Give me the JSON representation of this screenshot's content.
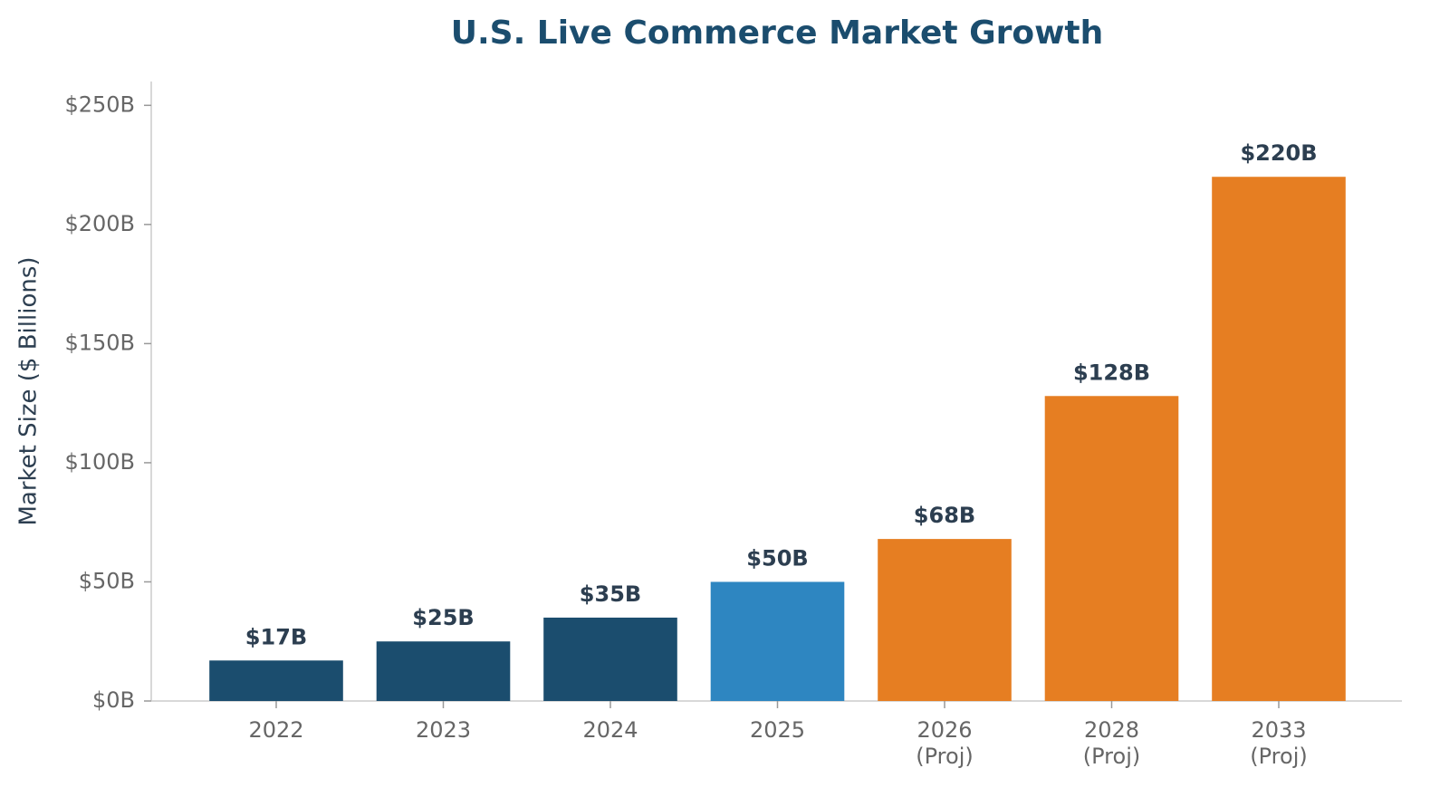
{
  "chart_data": {
    "type": "bar",
    "title": "U.S. Live Commerce Market Growth",
    "ylabel": "Market Size ($ Billions)",
    "categories": [
      "2022",
      "2023",
      "2024",
      "2025",
      "2026\n(Proj)",
      "2028\n(Proj)",
      "2033\n(Proj)"
    ],
    "values": [
      17,
      25,
      35,
      50,
      68,
      128,
      220
    ],
    "value_labels": [
      "$17B",
      "$25B",
      "$35B",
      "$50B",
      "$68B",
      "$128B",
      "$220B"
    ],
    "colors": [
      "#1b4d6e",
      "#1b4d6e",
      "#1b4d6e",
      "#2e86c1",
      "#e67e22",
      "#e67e22",
      "#e67e22"
    ],
    "ylim": [
      0,
      260
    ],
    "yticks": [
      {
        "value": 0,
        "label": "$0B"
      },
      {
        "value": 50,
        "label": "$50B"
      },
      {
        "value": 100,
        "label": "$100B"
      },
      {
        "value": 150,
        "label": "$150B"
      },
      {
        "value": 200,
        "label": "$200B"
      },
      {
        "value": 250,
        "label": "$250B"
      }
    ],
    "grid": false
  }
}
